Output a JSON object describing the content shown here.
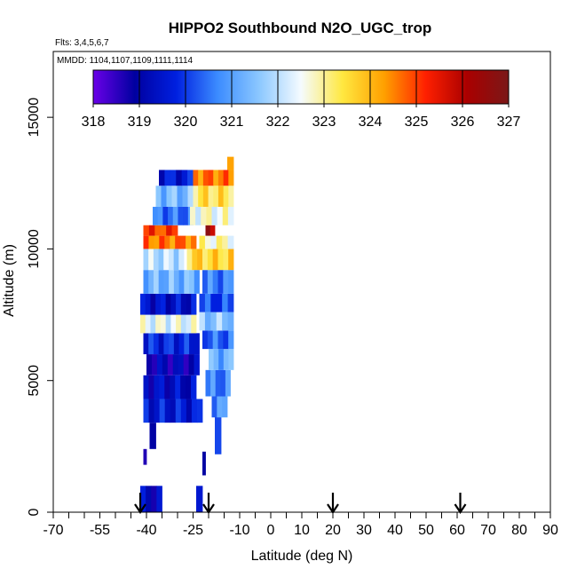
{
  "chart_data": {
    "type": "heatmap",
    "title": "HIPPO2 Southbound N2O_UGC_trop",
    "subtitle_flights": "Flts: 3,4,5,6,7",
    "subtitle_dates": "MMDD: 1104,1107,1109,1111,1114",
    "xlabel": "Latitude (deg N)",
    "ylabel": "Altitude (m)",
    "xlim": [
      -70,
      90
    ],
    "ylim": [
      0,
      17500
    ],
    "x_ticks": [
      {
        "value": -70,
        "label": "-70"
      },
      {
        "value": -55,
        "label": "-55"
      },
      {
        "value": -40,
        "label": "-40"
      },
      {
        "value": -25,
        "label": "-25"
      },
      {
        "value": -10,
        "label": "-10"
      },
      {
        "value": 0,
        "label": "0"
      },
      {
        "value": 10,
        "label": "10"
      },
      {
        "value": 20,
        "label": "20"
      },
      {
        "value": 30,
        "label": "30"
      },
      {
        "value": 40,
        "label": "40"
      },
      {
        "value": 50,
        "label": "50"
      },
      {
        "value": 60,
        "label": "60"
      },
      {
        "value": 70,
        "label": "70"
      },
      {
        "value": 80,
        "label": "80"
      },
      {
        "value": 90,
        "label": "90"
      }
    ],
    "x_minor_ticks": [
      -65,
      -60,
      -50,
      -45,
      -35,
      -30,
      -20,
      -15,
      -5,
      5,
      15,
      25,
      35,
      45,
      55,
      65,
      75,
      85
    ],
    "y_ticks": [
      {
        "value": 0,
        "label": "0"
      },
      {
        "value": 5000,
        "label": "5000"
      },
      {
        "value": 10000,
        "label": "10000"
      },
      {
        "value": 15000,
        "label": "15000"
      }
    ],
    "colorbar": {
      "min": 318,
      "max": 327,
      "tick_labels": [
        "318",
        "319",
        "320",
        "321",
        "322",
        "323",
        "324",
        "325",
        "326",
        "327"
      ],
      "colors": [
        "#6a00e8",
        "#0000a0",
        "#0020e0",
        "#3c8cff",
        "#8cc8ff",
        "#f5fbff",
        "#ffe840",
        "#ffa000",
        "#ff2000",
        "#aa0000",
        "#7a1818"
      ]
    },
    "flight_markers_lat": [
      -42,
      -20,
      20,
      61
    ],
    "profiles": [
      {
        "lat": [
          -42,
          -35
        ],
        "alt": [
          0,
          1000
        ],
        "value": 319.2
      },
      {
        "lat": [
          -24,
          -22
        ],
        "alt": [
          0,
          1000
        ],
        "value": 319.4
      },
      {
        "lat": [
          -41,
          -40
        ],
        "alt": [
          1800,
          2400
        ],
        "value": 319.0
      },
      {
        "lat": [
          -39,
          -37
        ],
        "alt": [
          2400,
          3400
        ],
        "value": 319.5
      },
      {
        "lat": [
          -22,
          -21
        ],
        "alt": [
          1400,
          2300
        ],
        "value": 318.8
      },
      {
        "lat": [
          -18,
          -16
        ],
        "alt": [
          2200,
          4000
        ],
        "value": 320.3
      },
      {
        "lat": [
          -41,
          -22
        ],
        "alt": [
          3400,
          4300
        ],
        "value": 319.6
      },
      {
        "lat": [
          -19,
          -14
        ],
        "alt": [
          3600,
          4500
        ],
        "value": 320.8
      },
      {
        "lat": [
          -41,
          -24
        ],
        "alt": [
          4300,
          5200
        ],
        "value": 319.3
      },
      {
        "lat": [
          -21,
          -13
        ],
        "alt": [
          4400,
          5400
        ],
        "value": 320.6
      },
      {
        "lat": [
          -40,
          -23
        ],
        "alt": [
          5200,
          6000
        ],
        "value": 319.0
      },
      {
        "lat": [
          -20,
          -12
        ],
        "alt": [
          5400,
          6200
        ],
        "value": 321.2
      },
      {
        "lat": [
          -41,
          -23
        ],
        "alt": [
          6000,
          6800
        ],
        "value": 319.8
      },
      {
        "lat": [
          -22,
          -12
        ],
        "alt": [
          6200,
          6900
        ],
        "value": 320.4
      },
      {
        "lat": [
          -42,
          -24
        ],
        "alt": [
          6800,
          7500
        ],
        "value": 322.4
      },
      {
        "lat": [
          -23,
          -12
        ],
        "alt": [
          6900,
          7600
        ],
        "value": 321.6
      },
      {
        "lat": [
          -42,
          -24
        ],
        "alt": [
          7500,
          8300
        ],
        "value": 319.4
      },
      {
        "lat": [
          -23,
          -12
        ],
        "alt": [
          7600,
          8300
        ],
        "value": 320.1
      },
      {
        "lat": [
          -41,
          -23
        ],
        "alt": [
          8300,
          9200
        ],
        "value": 321.3
      },
      {
        "lat": [
          -22,
          -12
        ],
        "alt": [
          8300,
          9200
        ],
        "value": 320.6
      },
      {
        "lat": [
          -41,
          -28
        ],
        "alt": [
          9200,
          10000
        ],
        "value": 322.0
      },
      {
        "lat": [
          -27,
          -12
        ],
        "alt": [
          9200,
          10000
        ],
        "value": 323.6
      },
      {
        "lat": [
          -41,
          -24
        ],
        "alt": [
          10000,
          10500
        ],
        "value": 324.6
      },
      {
        "lat": [
          -23,
          -12
        ],
        "alt": [
          10000,
          10500
        ],
        "value": 322.8
      },
      {
        "lat": [
          -41,
          -30
        ],
        "alt": [
          10500,
          10900
        ],
        "value": 325.0
      },
      {
        "lat": [
          -21,
          -18
        ],
        "alt": [
          10500,
          10900
        ],
        "value": 326.2
      },
      {
        "lat": [
          -38,
          -25
        ],
        "alt": [
          10900,
          11600
        ],
        "value": 320.5
      },
      {
        "lat": [
          -26,
          -12
        ],
        "alt": [
          10900,
          11600
        ],
        "value": 322.6
      },
      {
        "lat": [
          -37,
          -25
        ],
        "alt": [
          11600,
          12400
        ],
        "value": 321.4
      },
      {
        "lat": [
          -25,
          -12
        ],
        "alt": [
          11600,
          12400
        ],
        "value": 323.4
      },
      {
        "lat": [
          -36,
          -25
        ],
        "alt": [
          12400,
          13000
        ],
        "value": 319.6
      },
      {
        "lat": [
          -25,
          -12
        ],
        "alt": [
          12400,
          13000
        ],
        "value": 324.6
      },
      {
        "lat": [
          -14,
          -12
        ],
        "alt": [
          13000,
          13500
        ],
        "value": 324.0
      }
    ]
  }
}
